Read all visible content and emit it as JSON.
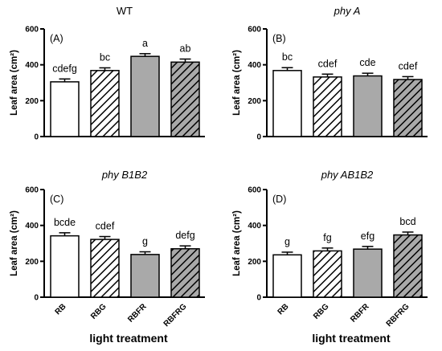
{
  "colors": {
    "axis": "#000000",
    "fill_white": "#ffffff",
    "fill_gray": "#a9a9a9",
    "hatch": "#000000"
  },
  "chart_data": [
    {
      "type": "bar",
      "title": "WT",
      "title_italic": false,
      "panel_label": "(A)",
      "ylabel": "Leaf area (cm²)",
      "ylim": [
        0,
        600
      ],
      "yticks": [
        "0",
        "200",
        "400",
        "600"
      ],
      "xlabel": "",
      "categories": [
        "RB",
        "RBG",
        "RBFR",
        "RBFRG"
      ],
      "show_category_labels": false,
      "values": [
        305,
        368,
        447,
        415
      ],
      "errors": [
        16,
        15,
        15,
        17
      ],
      "letters": [
        "cdefg",
        "bc",
        "a",
        "ab"
      ],
      "fills": [
        "white",
        "hatch-white",
        "gray",
        "hatch-gray"
      ]
    },
    {
      "type": "bar",
      "title": "phy A",
      "title_italic": true,
      "panel_label": "(B)",
      "ylabel": "Leaf area (cm²)",
      "ylim": [
        0,
        600
      ],
      "yticks": [
        "0",
        "200",
        "400",
        "600"
      ],
      "xlabel": "",
      "categories": [
        "RB",
        "RBG",
        "RBFR",
        "RBFRG"
      ],
      "show_category_labels": false,
      "values": [
        368,
        332,
        338,
        318
      ],
      "errors": [
        16,
        16,
        15,
        16
      ],
      "letters": [
        "bc",
        "cdef",
        "cde",
        "cdef"
      ],
      "fills": [
        "white",
        "hatch-white",
        "gray",
        "hatch-gray"
      ]
    },
    {
      "type": "bar",
      "title": "phy B1B2",
      "title_italic": true,
      "panel_label": "(C)",
      "ylabel": "Leaf area (cm²)",
      "ylim": [
        0,
        600
      ],
      "yticks": [
        "0",
        "200",
        "400",
        "600"
      ],
      "xlabel": "light treatment",
      "categories": [
        "RB",
        "RBG",
        "RBFR",
        "RBFRG"
      ],
      "show_category_labels": true,
      "values": [
        342,
        322,
        238,
        270
      ],
      "errors": [
        17,
        16,
        15,
        16
      ],
      "letters": [
        "bcde",
        "cdef",
        "g",
        "defg"
      ],
      "fills": [
        "white",
        "hatch-white",
        "gray",
        "hatch-gray"
      ]
    },
    {
      "type": "bar",
      "title": "phy AB1B2",
      "title_italic": true,
      "panel_label": "(D)",
      "ylabel": "Leaf area (cm²)",
      "ylim": [
        0,
        600
      ],
      "yticks": [
        "0",
        "200",
        "400",
        "600"
      ],
      "xlabel": "light treatment",
      "categories": [
        "RB",
        "RBG",
        "RBFR",
        "RBFRG"
      ],
      "show_category_labels": true,
      "values": [
        236,
        258,
        268,
        347
      ],
      "errors": [
        15,
        16,
        15,
        16
      ],
      "letters": [
        "g",
        "fg",
        "efg",
        "bcd"
      ],
      "fills": [
        "white",
        "hatch-white",
        "gray",
        "hatch-gray"
      ]
    }
  ]
}
